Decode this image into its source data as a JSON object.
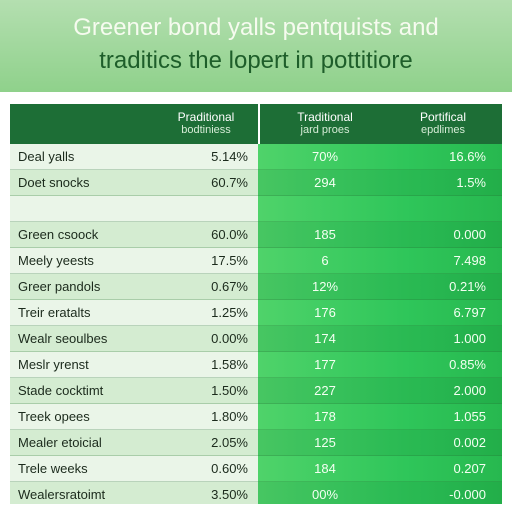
{
  "title": {
    "line1": "Greener bond yalls pentquists and",
    "line2": "traditics the lopert in pottitiore"
  },
  "table": {
    "headers": [
      {
        "top": "Praditional",
        "bottom": "bodtiniess"
      },
      {
        "top": "Traditional",
        "bottom": "jard proes"
      },
      {
        "top": "Portifical",
        "bottom": "epdlimes"
      }
    ],
    "rows": [
      {
        "label": "Deal yalls",
        "v1": "5.14%",
        "v2": "70%",
        "v3": "16.6%"
      },
      {
        "label": "Doet snocks",
        "v1": "60.7%",
        "v2": "294",
        "v3": "1.5%"
      },
      {
        "label": "",
        "v1": "",
        "v2": "",
        "v3": ""
      },
      {
        "label": "Green csoock",
        "v1": "60.0%",
        "v2": "185",
        "v3": "0.000"
      },
      {
        "label": "Meely yeests",
        "v1": "17.5%",
        "v2": "6",
        "v3": "7.498"
      },
      {
        "label": "Greer pandols",
        "v1": "0.67%",
        "v2": "12%",
        "v3": "0.21%"
      },
      {
        "label": "Treir eratalts",
        "v1": "1.25%",
        "v2": "176",
        "v3": "6.797"
      },
      {
        "label": "Wealr seoulbes",
        "v1": "0.00%",
        "v2": "174",
        "v3": "1.000"
      },
      {
        "label": "Meslr yrenst",
        "v1": "1.58%",
        "v2": "177",
        "v3": "0.85%"
      },
      {
        "label": "Stade cocktimt",
        "v1": "1.50%",
        "v2": "227",
        "v3": "2.000"
      },
      {
        "label": "Treek opees",
        "v1": "1.80%",
        "v2": "178",
        "v3": "1.055"
      },
      {
        "label": "Mealer etoicial",
        "v1": "2.05%",
        "v2": "125",
        "v3": "0.002"
      },
      {
        "label": "Trele weeks",
        "v1": "0.60%",
        "v2": "184",
        "v3": "0.207"
      },
      {
        "label": "Wealersratoimt",
        "v1": "3.50%",
        "v2": "00%",
        "v3": "-0.000"
      }
    ]
  }
}
